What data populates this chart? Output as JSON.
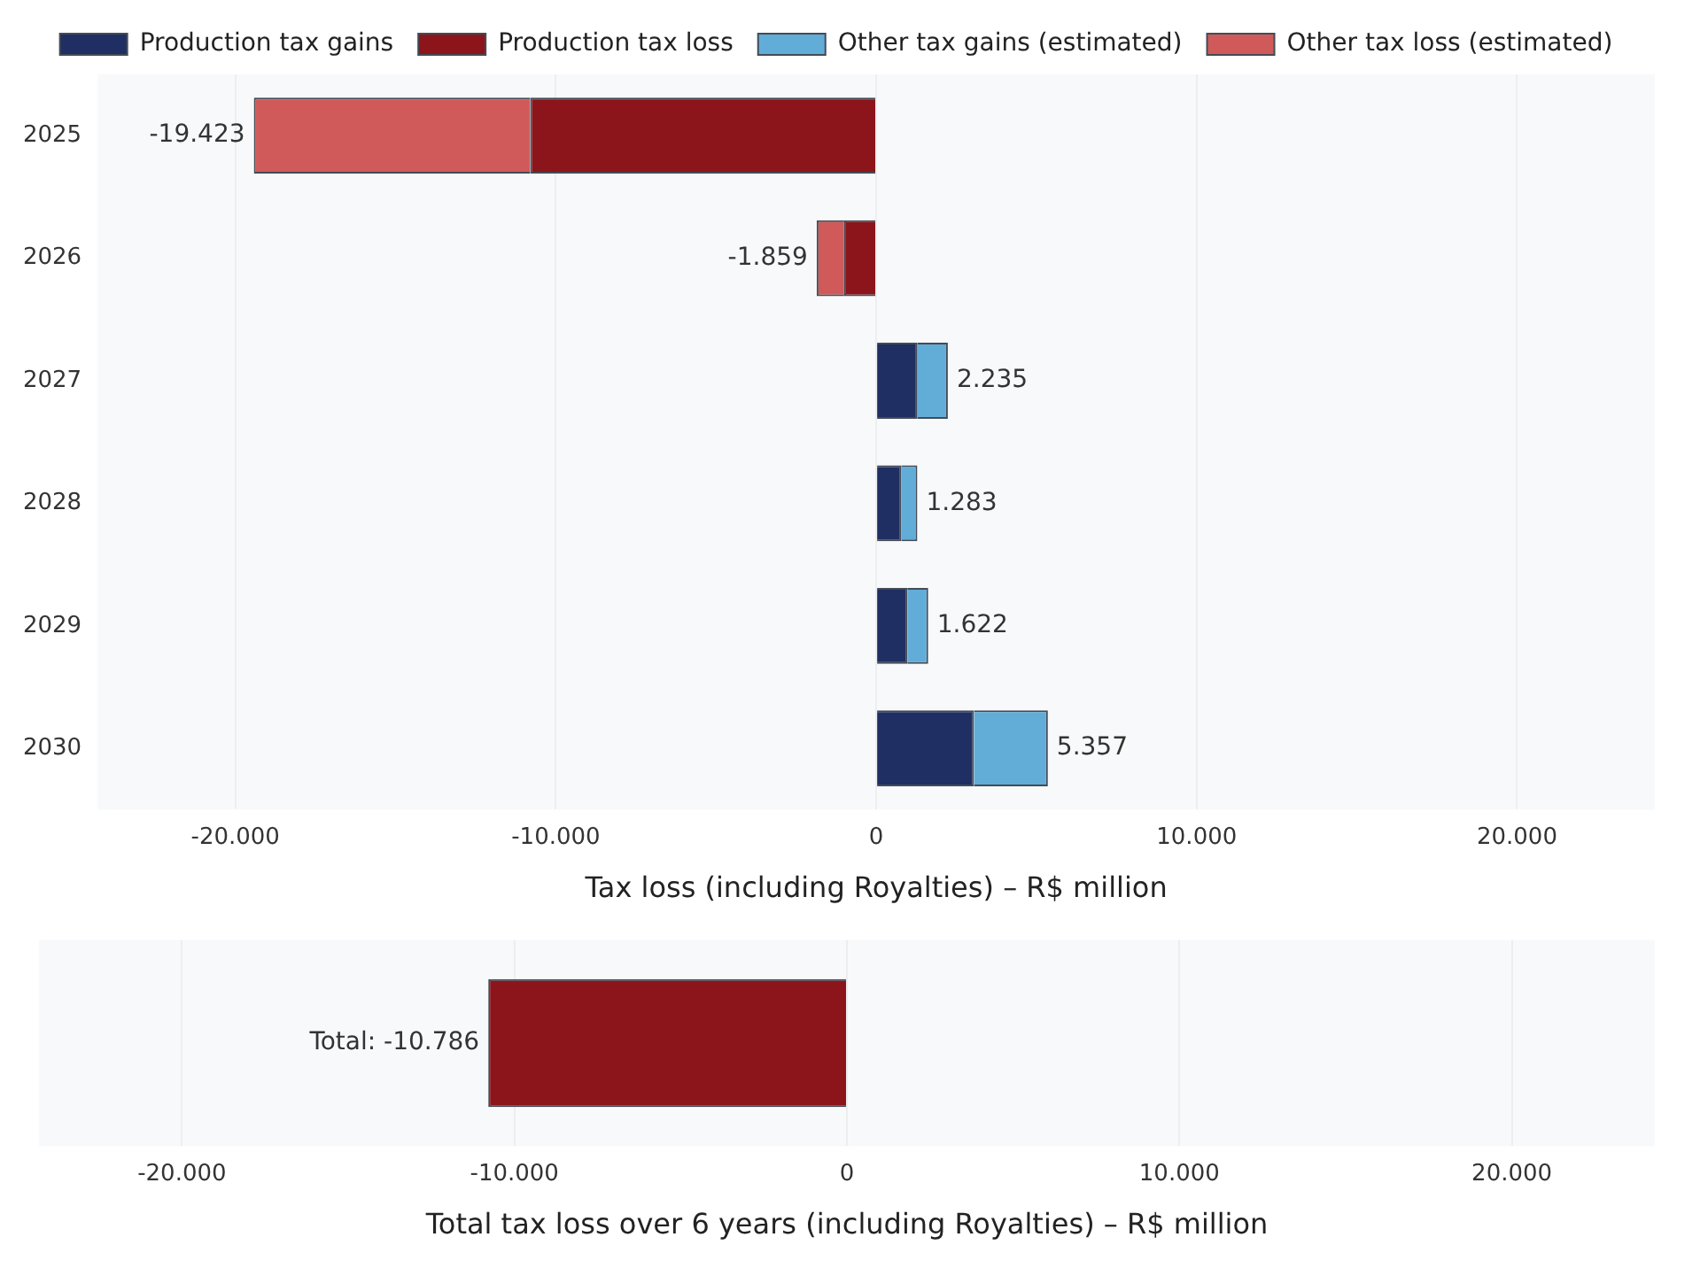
{
  "chart_data": [
    {
      "type": "bar",
      "orientation": "horizontal",
      "stacked": true,
      "xlabel": "Tax loss (including Royalties) – R$ million",
      "categories": [
        "2025",
        "2026",
        "2027",
        "2028",
        "2029",
        "2030"
      ],
      "series": [
        {
          "name": "Production tax gains",
          "color": "#1f2f63",
          "values": [
            null,
            null,
            1290,
            790,
            970,
            3050
          ]
        },
        {
          "name": "Production tax loss",
          "color": "#8b151b",
          "values": [
            -10800,
            -1000,
            null,
            null,
            null,
            null
          ]
        },
        {
          "name": "Other tax gains (estimated)",
          "color": "#62acd8",
          "values": [
            null,
            null,
            945,
            493,
            652,
            2307
          ]
        },
        {
          "name": "Other tax loss (estimated)",
          "color": "#d05a5a",
          "values": [
            -8623,
            -859,
            null,
            null,
            null,
            null
          ]
        }
      ],
      "totals": [
        "-19.423",
        "-1.859",
        "2.235",
        "1.283",
        "1.622",
        "5.357"
      ],
      "xlim": [
        -24300,
        24300
      ],
      "xticks": [
        {
          "value": -20000,
          "label": "-20.000"
        },
        {
          "value": -10000,
          "label": "-10.000"
        },
        0,
        {
          "value": 10000,
          "label": "10.000"
        },
        {
          "value": 20000,
          "label": "20.000"
        }
      ],
      "grid": "x",
      "legend": "top"
    },
    {
      "type": "bar",
      "orientation": "horizontal",
      "xlabel": "Total tax loss over 6 years (including Royalties) – R$ million",
      "categories": [
        null
      ],
      "series": [
        {
          "color": "#8b151b",
          "values": [
            -10786
          ],
          "value_labels": [
            "Total: -10.786"
          ]
        }
      ],
      "xlim": [
        -24300,
        24300
      ],
      "xticks": [
        {
          "value": -20000,
          "label": "-20.000"
        },
        {
          "value": -10000,
          "label": "-10.000"
        },
        0,
        {
          "value": 10000,
          "label": "10.000"
        },
        {
          "value": 20000,
          "label": "20.000"
        }
      ],
      "grid": "x"
    }
  ]
}
